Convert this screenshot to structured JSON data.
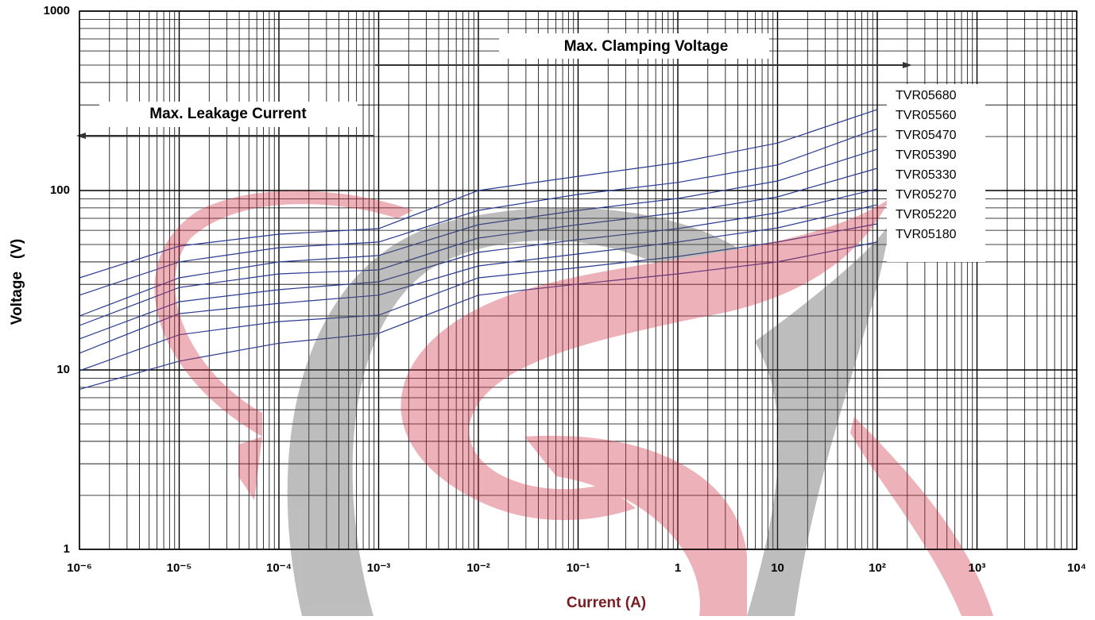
{
  "chart_data": {
    "type": "line",
    "x_label": "Current (A)",
    "y_label": "Voltage   (V)",
    "log_x": true,
    "log_y": true,
    "grid": true,
    "xlim": [
      1e-06,
      10000
    ],
    "ylim": [
      1,
      1000
    ],
    "xticks": [
      {
        "value": 1e-06,
        "label": "10⁻⁶"
      },
      {
        "value": 1e-05,
        "label": "10⁻⁵"
      },
      {
        "value": 0.0001,
        "label": "10⁻⁴"
      },
      {
        "value": 0.001,
        "label": "10⁻³"
      },
      {
        "value": 0.01,
        "label": "10⁻²"
      },
      {
        "value": 0.1,
        "label": "10⁻¹"
      },
      1,
      10,
      {
        "value": 100,
        "label": "10²"
      },
      {
        "value": 1000,
        "label": "10³"
      },
      {
        "value": 10000,
        "label": "10⁴"
      }
    ],
    "yticks": [
      1,
      10,
      100,
      1000
    ],
    "xminorticks": [
      2e-06,
      3e-06,
      4e-06,
      5e-06,
      6e-06,
      7e-06,
      8e-06,
      9e-06,
      2e-05,
      3e-05,
      4e-05,
      5e-05,
      6e-05,
      7e-05,
      8e-05,
      9e-05,
      0.0002,
      0.0003,
      0.0004,
      0.0005,
      0.0006,
      0.0007,
      0.0008,
      0.0009,
      0.002,
      0.003,
      0.004,
      0.005,
      0.006,
      0.007,
      0.008,
      0.009,
      0.02,
      0.03,
      0.04,
      0.05,
      0.06,
      0.07,
      0.08,
      0.09,
      0.2,
      0.3,
      0.4,
      0.5,
      0.6,
      0.7,
      0.8,
      0.9,
      2,
      3,
      4,
      5,
      6,
      7,
      8,
      9,
      20,
      30,
      40,
      50,
      60,
      70,
      80,
      90,
      200,
      300,
      400,
      500,
      600,
      700,
      800,
      900,
      2000,
      3000,
      4000,
      5000,
      6000,
      7000,
      8000,
      9000
    ],
    "yminorticks": [
      2,
      3,
      4,
      5,
      6,
      7,
      8,
      9,
      20,
      30,
      40,
      50,
      60,
      70,
      80,
      90,
      200,
      300,
      400,
      500,
      600,
      700,
      800,
      900
    ],
    "annotations": [
      "Max.  Clamping  Voltage",
      "Max. Leakage Current"
    ],
    "x": [
      1e-06,
      1e-05,
      0.0001,
      0.001,
      0.01,
      0.1,
      1,
      10,
      100
    ],
    "series": [
      {
        "name": "TVR05680",
        "color": "#2b3a92",
        "values": [
          32.6,
          49.0,
          57.1,
          61.3,
          100,
          120,
          143,
          184,
          283
        ]
      },
      {
        "name": "TVR05560",
        "color": "#2b3a92",
        "values": [
          26.1,
          40.0,
          48.0,
          51.6,
          77.5,
          95.1,
          111,
          139,
          221
        ]
      },
      {
        "name": "TVR05470",
        "color": "#2b3a92",
        "values": [
          20.0,
          32.6,
          40.0,
          43.4,
          64.5,
          77.5,
          90.3,
          113,
          170
        ]
      },
      {
        "name": "TVR05390",
        "color": "#2b3a92",
        "values": [
          17.7,
          28.8,
          34.3,
          36.1,
          54.3,
          64.5,
          75.2,
          92.2,
          133
        ]
      },
      {
        "name": "TVR05330",
        "color": "#2b3a92",
        "values": [
          14.9,
          24.0,
          28.0,
          31.0,
          45.2,
          53.2,
          61.3,
          75.2,
          102
        ]
      },
      {
        "name": "TVR05270",
        "color": "#2b3a92",
        "values": [
          12.4,
          20.6,
          23.5,
          26.1,
          38.0,
          44.3,
          51.6,
          61.9,
          83.3
        ]
      },
      {
        "name": "TVR05220",
        "color": "#2b3a92",
        "values": [
          9.9,
          15.7,
          18.6,
          20.2,
          32.6,
          37.2,
          42.9,
          51.6,
          65.2
        ]
      },
      {
        "name": "TVR05180",
        "color": "#2b3a92",
        "values": [
          7.8,
          11.2,
          14.1,
          16.0,
          26.1,
          30.1,
          34.3,
          40.0,
          51.6
        ]
      }
    ]
  }
}
